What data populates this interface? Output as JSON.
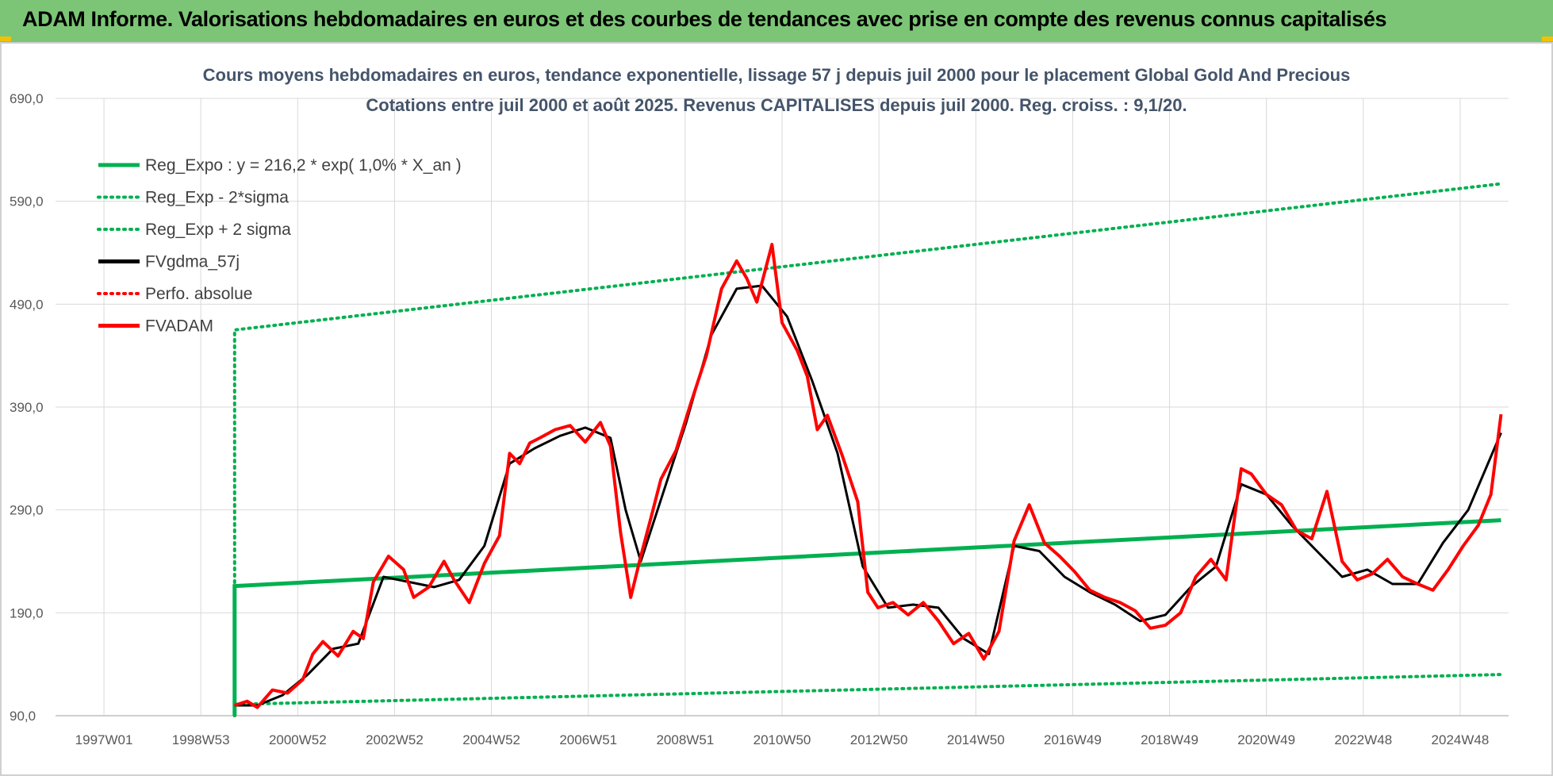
{
  "banner": {
    "title": "ADAM Informe. Valorisations hebdomadaires en euros et des courbes de tendances avec prise en compte des revenus connus capitalisés"
  },
  "colors": {
    "banner_bg": "#7cc576",
    "trend": "#00b050",
    "ma": "#000000",
    "price": "#ff0000",
    "grid": "#d9d9d9"
  },
  "chart_data": {
    "type": "line",
    "title_lines": [
      "Cours moyens hebdomadaires en euros, tendance exponentielle, lissage 57 j depuis juil 2000 pour le placement Global Gold And Precious",
      "Cotations entre juil 2000 et août 2025. Revenus CAPITALISES depuis juil 2000. Reg. croiss. : 9,1/20."
    ],
    "y_ticks": [
      "690,0",
      "590,0",
      "490,0",
      "390,0",
      "290,0",
      "190,0",
      "90,0"
    ],
    "ylim": [
      90,
      690
    ],
    "x_ticks": [
      "1997W01",
      "1998W53",
      "2000W52",
      "2002W52",
      "2004W52",
      "2006W51",
      "2008W51",
      "2010W50",
      "2012W50",
      "2014W50",
      "2016W49",
      "2018W49",
      "2020W49",
      "2022W48",
      "2024W48"
    ],
    "xlim": [
      1997.0,
      2025.8
    ],
    "grid": true,
    "legend_position": "top-left",
    "legend": [
      {
        "label": "Reg_Expo : y = 216,2 * exp( 1,0% *  X_an )",
        "color": "#00b050",
        "style": "solid"
      },
      {
        "label": "Reg_Exp - 2*sigma",
        "color": "#00b050",
        "style": "dotted"
      },
      {
        "label": "Reg_Exp + 2 sigma",
        "color": "#00b050",
        "style": "dotted"
      },
      {
        "label": "FVgdma_57j",
        "color": "#000000",
        "style": "solid"
      },
      {
        "label": "Perfo. absolue",
        "color": "#ff0000",
        "style": "dotted"
      },
      {
        "label": "FVADAM",
        "color": "#ff0000",
        "style": "solid"
      }
    ],
    "series": [
      {
        "name": "Reg_Expo : y = 216,2 * exp( 1,0% *  X_an )",
        "x": [
          2000.55,
          2025.65
        ],
        "y": [
          216,
          280
        ]
      },
      {
        "name": "Reg_Exp - 2*sigma",
        "x": [
          2000.55,
          2025.65
        ],
        "y": [
          101,
          130
        ]
      },
      {
        "name": "Reg_Exp + 2 sigma",
        "x": [
          2000.55,
          2025.65
        ],
        "y": [
          465,
          607
        ]
      },
      {
        "name": "FVADAM",
        "x": [
          2000.55,
          2000.8,
          2001.0,
          2001.3,
          2001.6,
          2001.9,
          2002.1,
          2002.3,
          2002.6,
          2002.9,
          2003.1,
          2003.3,
          2003.6,
          2003.9,
          2004.1,
          2004.4,
          2004.7,
          2004.9,
          2005.2,
          2005.5,
          2005.8,
          2006.0,
          2006.2,
          2006.4,
          2006.6,
          2006.9,
          2007.2,
          2007.5,
          2007.8,
          2008.0,
          2008.2,
          2008.4,
          2008.6,
          2008.8,
          2009.0,
          2009.3,
          2009.6,
          2009.9,
          2010.2,
          2010.5,
          2010.7,
          2010.9,
          2011.2,
          2011.4,
          2011.7,
          2011.9,
          2012.1,
          2012.3,
          2012.6,
          2012.9,
          2013.1,
          2013.3,
          2013.6,
          2013.9,
          2014.2,
          2014.5,
          2014.8,
          2015.1,
          2015.4,
          2015.7,
          2016.0,
          2016.3,
          2016.6,
          2016.9,
          2017.2,
          2017.5,
          2017.8,
          2018.1,
          2018.4,
          2018.7,
          2019.0,
          2019.3,
          2019.6,
          2019.9,
          2020.2,
          2020.5,
          2020.7,
          2021.0,
          2021.3,
          2021.6,
          2021.9,
          2022.2,
          2022.5,
          2022.8,
          2023.1,
          2023.4,
          2023.7,
          2024.0,
          2024.3,
          2024.6,
          2024.9,
          2025.2,
          2025.45,
          2025.65
        ],
        "y": [
          100,
          104,
          98,
          115,
          112,
          125,
          150,
          162,
          148,
          172,
          165,
          220,
          245,
          232,
          205,
          215,
          240,
          222,
          200,
          238,
          265,
          345,
          335,
          355,
          360,
          368,
          372,
          356,
          375,
          352,
          268,
          205,
          245,
          282,
          320,
          348,
          395,
          440,
          505,
          532,
          515,
          492,
          548,
          472,
          445,
          420,
          368,
          382,
          342,
          298,
          210,
          195,
          200,
          188,
          200,
          182,
          160,
          170,
          145,
          172,
          260,
          295,
          258,
          245,
          230,
          212,
          205,
          200,
          192,
          175,
          178,
          190,
          225,
          242,
          222,
          330,
          325,
          305,
          295,
          270,
          262,
          308,
          240,
          222,
          228,
          242,
          225,
          218,
          212,
          232,
          255,
          275,
          305,
          383
        ]
      },
      {
        "name": "FVgdma_57j",
        "x": [
          2000.55,
          2001.0,
          2001.5,
          2002.0,
          2002.5,
          2003.0,
          2003.5,
          2004.0,
          2004.5,
          2005.0,
          2005.5,
          2006.0,
          2006.5,
          2007.0,
          2007.5,
          2008.0,
          2008.3,
          2008.6,
          2009.0,
          2009.5,
          2010.0,
          2010.5,
          2011.0,
          2011.5,
          2012.0,
          2012.5,
          2013.0,
          2013.5,
          2014.0,
          2014.5,
          2015.0,
          2015.5,
          2016.0,
          2016.5,
          2017.0,
          2017.5,
          2018.0,
          2018.5,
          2019.0,
          2019.5,
          2020.0,
          2020.5,
          2021.0,
          2021.5,
          2022.0,
          2022.5,
          2023.0,
          2023.5,
          2024.0,
          2024.5,
          2025.0,
          2025.65
        ],
        "y": [
          100,
          100,
          110,
          130,
          155,
          160,
          225,
          220,
          215,
          222,
          255,
          335,
          350,
          362,
          370,
          360,
          290,
          240,
          300,
          375,
          460,
          505,
          508,
          478,
          415,
          345,
          235,
          195,
          198,
          195,
          165,
          150,
          255,
          250,
          225,
          210,
          198,
          182,
          188,
          215,
          235,
          315,
          305,
          275,
          250,
          225,
          232,
          218,
          218,
          258,
          290,
          365
        ]
      }
    ]
  }
}
